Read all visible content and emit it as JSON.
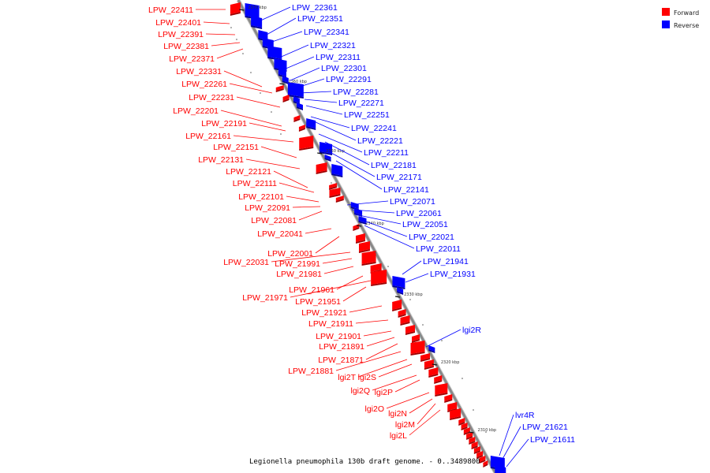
{
  "colors": {
    "forward": "#ff0000",
    "reverse": "#0000ff",
    "forward_dark": "#a00000",
    "reverse_dark": "#00009a",
    "backbone": "#888888"
  },
  "legend": {
    "forward_label": "Forward",
    "reverse_label": "Reverse"
  },
  "caption": "Legionella pneumophila 130b draft genome. - 0..3489800",
  "ticks": [
    "2370 kbp",
    "2360 kbp",
    "2350 kbp",
    "2340 kbp",
    "2330 kbp",
    "2320 kbp",
    "2310 kbp"
  ],
  "genes_forward_left": [
    "LPW_22411",
    "LPW_22401",
    "LPW_22391",
    "LPW_22381",
    "LPW_22371",
    "LPW_22331",
    "LPW_22261",
    "LPW_22231",
    "LPW_22201",
    "LPW_22191",
    "LPW_22161",
    "LPW_22151",
    "LPW_22131",
    "LPW_22121",
    "LPW_22111",
    "LPW_22101",
    "LPW_22091",
    "LPW_22081",
    "LPW_22041",
    "LPW_22001",
    "LPW_22031",
    "LPW_21991",
    "LPW_21981",
    "LPW_21961",
    "LPW_21971",
    "LPW_21951",
    "LPW_21921",
    "LPW_21911",
    "LPW_21901",
    "LPW_21891",
    "LPW_21871",
    "LPW_21881",
    "lgi2T",
    "lgi2S",
    "lgi2Q",
    "lgi2P",
    "lgi2O",
    "lgi2N",
    "lgi2M",
    "lgi2L"
  ],
  "genes_reverse_right": [
    "LPW_22361",
    "LPW_22351",
    "LPW_22341",
    "LPW_22321",
    "LPW_22311",
    "LPW_22301",
    "LPW_22291",
    "LPW_22281",
    "LPW_22271",
    "LPW_22251",
    "LPW_22241",
    "LPW_22221",
    "LPW_22211",
    "LPW_22181",
    "LPW_22171",
    "LPW_22141",
    "LPW_22071",
    "LPW_22061",
    "LPW_22051",
    "LPW_22021",
    "LPW_22011",
    "LPW_21941",
    "LPW_21931",
    "lgi2R",
    "lvr4R",
    "LPW_21621",
    "LPW_21611"
  ]
}
